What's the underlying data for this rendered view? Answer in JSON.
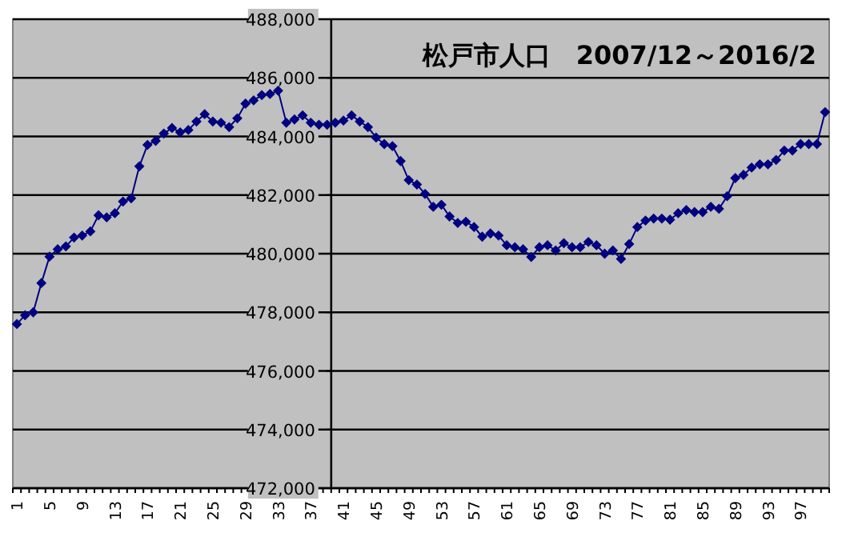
{
  "chart_data": {
    "type": "line",
    "title": "松戸市人口　2007/12～2016/2",
    "color": "#000080",
    "marker": "diamond",
    "grid": "y",
    "categories": [
      "1",
      null,
      null,
      null,
      "5",
      null,
      null,
      null,
      "9",
      null,
      null,
      null,
      "13",
      null,
      null,
      null,
      "17",
      null,
      null,
      null,
      "21",
      null,
      null,
      null,
      "25",
      null,
      null,
      null,
      "29",
      null,
      null,
      null,
      "33",
      null,
      null,
      null,
      "37",
      null,
      null,
      null,
      "41",
      null,
      null,
      null,
      "45",
      null,
      null,
      null,
      "49",
      null,
      null,
      null,
      "53",
      null,
      null,
      null,
      "57",
      null,
      null,
      null,
      "61",
      null,
      null,
      null,
      "65",
      null,
      null,
      null,
      "69",
      null,
      null,
      null,
      "73",
      null,
      null,
      null,
      "77",
      null,
      null,
      null,
      "81",
      null,
      null,
      null,
      "85",
      null,
      null,
      null,
      "89",
      null,
      null,
      null,
      "93",
      null,
      null,
      null,
      "97",
      null,
      null,
      null
    ],
    "values": [
      477600,
      477900,
      478000,
      479000,
      479900,
      480150,
      480250,
      480550,
      480620,
      480760,
      481310,
      481240,
      481380,
      481780,
      481890,
      482980,
      483710,
      483850,
      484100,
      484290,
      484140,
      484220,
      484510,
      484760,
      484510,
      484470,
      484320,
      484620,
      485120,
      485230,
      485410,
      485450,
      485560,
      484470,
      484580,
      484720,
      484470,
      484400,
      484400,
      484470,
      484540,
      484720,
      484510,
      484320,
      483960,
      483740,
      483670,
      483160,
      482510,
      482360,
      482040,
      481600,
      481670,
      481270,
      481050,
      481090,
      480910,
      480580,
      480690,
      480620,
      480290,
      480220,
      480150,
      479890,
      480220,
      480290,
      480110,
      480360,
      480220,
      480220,
      480400,
      480290,
      480000,
      480110,
      479820,
      480330,
      480910,
      481130,
      481200,
      481200,
      481160,
      481380,
      481490,
      481420,
      481420,
      481600,
      481530,
      481960,
      482580,
      482690,
      482940,
      483050,
      483050,
      483200,
      483520,
      483520,
      483740,
      483740,
      483740,
      484830
    ],
    "ylim": [
      472000,
      488000
    ],
    "yticks": [
      {
        "value": 472000,
        "label": "472,000"
      },
      {
        "value": 474000,
        "label": "474,000"
      },
      {
        "value": 476000,
        "label": "476,000"
      },
      {
        "value": 478000,
        "label": "478,000"
      },
      {
        "value": 480000,
        "label": "480,000"
      },
      {
        "value": 482000,
        "label": "482,000"
      },
      {
        "value": 484000,
        "label": "484,000"
      },
      {
        "value": 486000,
        "label": "486,000"
      },
      {
        "value": 488000,
        "label": "488,000"
      }
    ]
  }
}
